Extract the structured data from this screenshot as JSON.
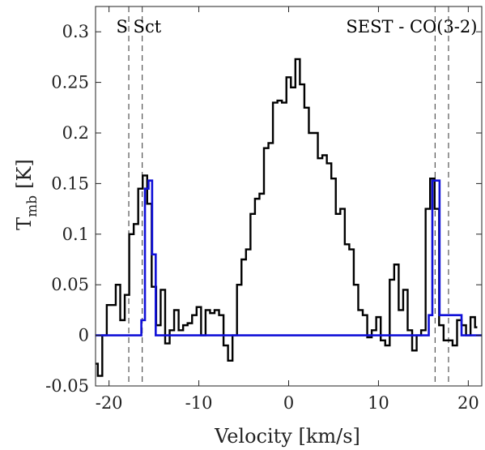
{
  "chart_data": {
    "type": "line",
    "xlabel": "Velocity [km/s]",
    "ylabel_main": "T",
    "ylabel_sub": "mb",
    "ylabel_unit": "[K]",
    "xlim": [
      -21.5,
      21.5
    ],
    "ylim": [
      -0.05,
      0.325
    ],
    "xticks": [
      -20,
      -10,
      0,
      10,
      20
    ],
    "xtick_labels": [
      "-20",
      "-10",
      "0",
      "10",
      "20"
    ],
    "yticks": [
      -0.05,
      0,
      0.05,
      0.1,
      0.15,
      0.2,
      0.25,
      0.3
    ],
    "ytick_labels": [
      "-0.05",
      "0",
      "0.05",
      "0.1",
      "0.15",
      "0.2",
      "0.25",
      "0.3"
    ],
    "grid": false,
    "annotations": [
      {
        "text": "S Sct",
        "x": -19.2,
        "y": 0.305,
        "anchor": "start"
      },
      {
        "text": "SEST - CO(3-2)",
        "x": 21.0,
        "y": 0.305,
        "anchor": "end"
      }
    ],
    "vlines": [
      -17.8,
      -16.3,
      16.3,
      17.8
    ],
    "series": [
      {
        "color": "#000000",
        "step": "mid",
        "x": [
          -21.5,
          -21.0,
          -20.5,
          -20.0,
          -19.5,
          -19.0,
          -18.5,
          -18.0,
          -17.5,
          -17.0,
          -16.5,
          -16.0,
          -15.5,
          -15.0,
          -14.5,
          -14.0,
          -13.5,
          -13.0,
          -12.5,
          -12.0,
          -11.5,
          -11.0,
          -10.5,
          -10.0,
          -9.5,
          -9.0,
          -8.5,
          -8.0,
          -7.5,
          -7.0,
          -6.5,
          -6.0,
          -5.5,
          -5.0,
          -4.5,
          -4.0,
          -3.5,
          -3.0,
          -2.5,
          -2.0,
          -1.5,
          -1.0,
          -0.5,
          0.0,
          0.5,
          1.0,
          1.5,
          2.0,
          2.5,
          3.0,
          3.5,
          4.0,
          4.5,
          5.0,
          5.5,
          6.0,
          6.5,
          7.0,
          7.5,
          8.0,
          8.5,
          9.0,
          9.5,
          10.0,
          10.5,
          11.0,
          11.5,
          12.0,
          12.5,
          13.0,
          13.5,
          14.0,
          14.5,
          15.0,
          15.5,
          16.0,
          16.5,
          17.0,
          17.5,
          18.0,
          18.5,
          19.0,
          19.5,
          20.0,
          20.5,
          21.0
        ],
        "y": [
          -0.028,
          -0.04,
          0.0,
          0.03,
          0.03,
          0.05,
          0.015,
          0.04,
          0.1,
          0.11,
          0.145,
          0.158,
          0.13,
          0.048,
          0.01,
          0.045,
          -0.008,
          0.005,
          0.025,
          0.005,
          0.01,
          0.012,
          0.02,
          0.028,
          0.0,
          0.025,
          0.022,
          0.025,
          0.02,
          -0.01,
          -0.025,
          0.0,
          0.05,
          0.075,
          0.085,
          0.12,
          0.135,
          0.14,
          0.185,
          0.19,
          0.23,
          0.232,
          0.23,
          0.255,
          0.245,
          0.273,
          0.248,
          0.225,
          0.2,
          0.2,
          0.175,
          0.178,
          0.17,
          0.155,
          0.12,
          0.125,
          0.09,
          0.085,
          0.05,
          0.025,
          0.02,
          -0.002,
          0.005,
          0.018,
          -0.005,
          -0.01,
          0.055,
          0.07,
          0.025,
          0.045,
          0.005,
          -0.015,
          0.0,
          0.005,
          0.125,
          0.155,
          0.125,
          0.01,
          -0.005,
          -0.005,
          -0.01,
          0.015,
          0.01,
          0.0,
          0.018,
          0.008
        ]
      },
      {
        "color": "#1010d8",
        "step": "mid",
        "x": [
          -21.5,
          -16.6,
          -16.2,
          -15.8,
          -15.4,
          -15.0,
          -14.6,
          15.4,
          15.8,
          16.2,
          16.6,
          17.0,
          21.5
        ],
        "y": [
          0.0,
          0.0,
          0.015,
          0.145,
          0.153,
          0.08,
          0.0,
          0.0,
          0.02,
          0.153,
          0.153,
          0.02,
          0.0
        ]
      }
    ]
  }
}
